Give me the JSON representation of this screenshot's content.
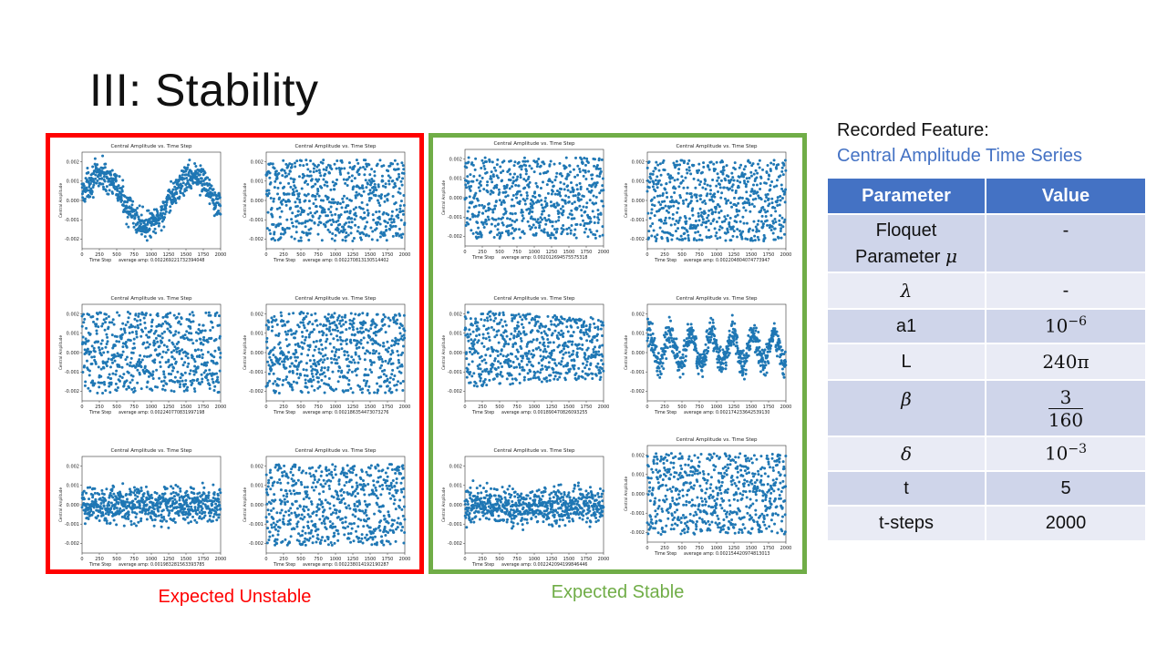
{
  "slide": {
    "title": "III: Stability",
    "unstable_label": "Expected Unstable",
    "stable_label": "Expected Stable",
    "recorded_title": "Recorded Feature:",
    "recorded_sub": "Central Amplitude Time Series"
  },
  "colors": {
    "unstable_border": "#ff0000",
    "stable_border": "#70ad47",
    "table_header": "#4472c4",
    "marker": "#1f77b4"
  },
  "table": {
    "headers": [
      "Parameter",
      "Value"
    ],
    "rows": [
      {
        "param_line1": "Floquet",
        "param_line2": "Parameter",
        "param_symbol": "μ",
        "value": "-"
      },
      {
        "param_symbol": "λ",
        "value": "-"
      },
      {
        "param": "a1",
        "value_base": "10",
        "value_exp": "−6"
      },
      {
        "param": "L",
        "value": "240π"
      },
      {
        "param_symbol": "β",
        "value_num": "3",
        "value_den": "160"
      },
      {
        "param_symbol": "δ",
        "value_base": "10",
        "value_exp": "−3"
      },
      {
        "param": "t",
        "value": "5"
      },
      {
        "param": "t-steps",
        "value": "2000"
      }
    ]
  },
  "chart_data": [
    {
      "type": "scatter",
      "title": "Central Amplitude vs. Time Step",
      "xlabel": "Time Step",
      "ylabel": "Central Amplitude",
      "note": "average amp: 0.002269221732394048",
      "xlim": [
        0,
        2000
      ],
      "ylim": [
        -0.0025,
        0.0025
      ],
      "x_ticks": [
        0,
        250,
        500,
        750,
        1000,
        1250,
        1500,
        1750,
        2000
      ],
      "y_ticks": [
        "0.002",
        "0.001",
        "0.000",
        "-0.001",
        "-0.002"
      ],
      "pattern": "beating"
    },
    {
      "type": "scatter",
      "title": "Central Amplitude vs. Time Step",
      "xlabel": "Time Step",
      "ylabel": "Central Amplitude",
      "note": "average amp: 0.002270813130514402",
      "xlim": [
        0,
        2000
      ],
      "ylim": [
        -0.0025,
        0.0025
      ],
      "x_ticks": [
        0,
        250,
        500,
        750,
        1000,
        1250,
        1500,
        1750,
        2000
      ],
      "y_ticks": [
        "0.002",
        "0.001",
        "0.000",
        "-0.001",
        "-0.002"
      ],
      "pattern": "uniform"
    },
    {
      "type": "scatter",
      "title": "Central Amplitude vs. Time Step",
      "xlabel": "Time Step",
      "ylabel": "Central Amplitude",
      "note": "average amp: 0.002240770831997198",
      "xlim": [
        0,
        2000
      ],
      "ylim": [
        -0.0025,
        0.0025
      ],
      "x_ticks": [
        0,
        250,
        500,
        750,
        1000,
        1250,
        1500,
        1750,
        2000
      ],
      "y_ticks": [
        "0.002",
        "0.001",
        "0.000",
        "-0.001",
        "-0.002"
      ],
      "pattern": "uniform"
    },
    {
      "type": "scatter",
      "title": "Central Amplitude vs. Time Step",
      "xlabel": "Time Step",
      "ylabel": "Central Amplitude",
      "note": "average amp: 0.002186354473073276",
      "xlim": [
        0,
        2000
      ],
      "ylim": [
        -0.0025,
        0.0025
      ],
      "x_ticks": [
        0,
        250,
        500,
        750,
        1000,
        1250,
        1500,
        1750,
        2000
      ],
      "y_ticks": [
        "0.002",
        "0.001",
        "0.000",
        "-0.001",
        "-0.002"
      ],
      "pattern": "uniform"
    },
    {
      "type": "scatter",
      "title": "Central Amplitude vs. Time Step",
      "xlabel": "Time Step",
      "ylabel": "Central Amplitude",
      "note": "average amp: 0.001983281563393785",
      "xlim": [
        0,
        2000
      ],
      "ylim": [
        -0.0025,
        0.0025
      ],
      "x_ticks": [
        0,
        250,
        500,
        750,
        1000,
        1250,
        1500,
        1750,
        2000
      ],
      "y_ticks": [
        "0.002",
        "0.001",
        "0.000",
        "-0.001",
        "-0.002"
      ],
      "pattern": "dense"
    },
    {
      "type": "scatter",
      "title": "Central Amplitude vs. Time Step",
      "xlabel": "Time Step",
      "ylabel": "Central Amplitude",
      "note": "average amp: 0.002238014192190287",
      "xlim": [
        0,
        2000
      ],
      "ylim": [
        -0.0025,
        0.0025
      ],
      "x_ticks": [
        0,
        250,
        500,
        750,
        1000,
        1250,
        1500,
        1750,
        2000
      ],
      "y_ticks": [
        "0.002",
        "0.001",
        "0.000",
        "-0.001",
        "-0.002"
      ],
      "pattern": "uniform"
    },
    {
      "type": "scatter",
      "title": "Central Amplitude vs. Time Step",
      "xlabel": "Time Step",
      "ylabel": "Central Amplitude",
      "note": "average amp: 0.002012694575575318",
      "xlim": [
        0,
        2000
      ],
      "ylim": [
        -0.0025,
        0.0025
      ],
      "x_ticks": [
        0,
        250,
        500,
        750,
        1000,
        1250,
        1500,
        1750,
        2000
      ],
      "y_ticks": [
        "0.002",
        "0.001",
        "0.000",
        "-0.001",
        "-0.002"
      ],
      "pattern": "uniform"
    },
    {
      "type": "scatter",
      "title": "Central Amplitude vs. Time Step",
      "xlabel": "Time Step",
      "ylabel": "Central Amplitude",
      "note": "average amp: 0.002204804074773947",
      "xlim": [
        0,
        2000
      ],
      "ylim": [
        -0.0025,
        0.0025
      ],
      "x_ticks": [
        0,
        250,
        500,
        750,
        1000,
        1250,
        1500,
        1750,
        2000
      ],
      "y_ticks": [
        "0.002",
        "0.001",
        "0.000",
        "-0.001",
        "-0.002"
      ],
      "pattern": "uniform"
    },
    {
      "type": "scatter",
      "title": "Central Amplitude vs. Time Step",
      "xlabel": "Time Step",
      "ylabel": "Central Amplitude",
      "note": "average amp: 0.001890470826093255",
      "xlim": [
        0,
        2000
      ],
      "ylim": [
        -0.0025,
        0.0025
      ],
      "x_ticks": [
        0,
        250,
        500,
        750,
        1000,
        1250,
        1500,
        1750,
        2000
      ],
      "y_ticks": [
        "0.002",
        "0.001",
        "0.000",
        "-0.001",
        "-0.002"
      ],
      "pattern": "decay"
    },
    {
      "type": "scatter",
      "title": "Central Amplitude vs. Time Step",
      "xlabel": "Time Step",
      "ylabel": "Central Amplitude",
      "note": "average amp: 0.002174233642539130",
      "xlim": [
        0,
        2000
      ],
      "ylim": [
        -0.0025,
        0.0025
      ],
      "x_ticks": [
        0,
        250,
        500,
        750,
        1000,
        1250,
        1500,
        1750,
        2000
      ],
      "y_ticks": [
        "0.002",
        "0.001",
        "0.000",
        "-0.001",
        "-0.002"
      ],
      "pattern": "oscillating"
    },
    {
      "type": "scatter",
      "title": "Central Amplitude vs. Time Step",
      "xlabel": "Time Step",
      "ylabel": "Central Amplitude",
      "note": "average amp: 0.002242094199846446",
      "xlim": [
        0,
        2000
      ],
      "ylim": [
        -0.0025,
        0.0025
      ],
      "x_ticks": [
        0,
        250,
        500,
        750,
        1000,
        1250,
        1500,
        1750,
        2000
      ],
      "y_ticks": [
        "0.002",
        "0.001",
        "0.000",
        "-0.001",
        "-0.002"
      ],
      "pattern": "dense"
    },
    {
      "type": "scatter",
      "title": "Central Amplitude vs. Time Step",
      "xlabel": "Time Step",
      "ylabel": "Central Amplitude",
      "note": "average amp: 0.002154420974813013",
      "xlim": [
        0,
        2000
      ],
      "ylim": [
        -0.0025,
        0.0025
      ],
      "x_ticks": [
        0,
        250,
        500,
        750,
        1000,
        1250,
        1500,
        1750,
        2000
      ],
      "y_ticks": [
        "0.002",
        "0.001",
        "0.000",
        "-0.001",
        "-0.002"
      ],
      "pattern": "uniform"
    }
  ]
}
